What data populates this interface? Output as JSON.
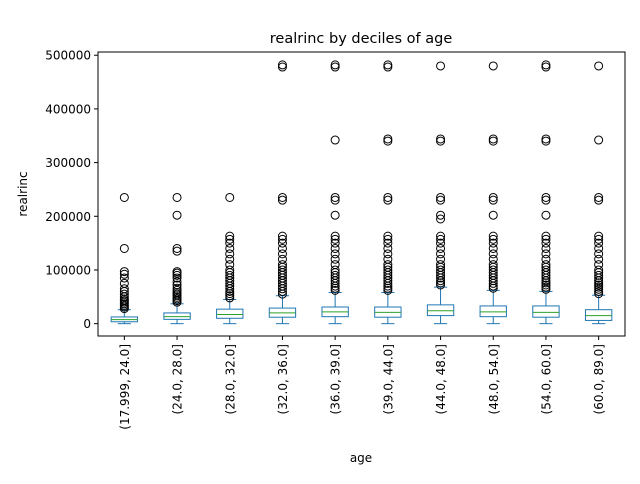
{
  "chart_data": {
    "type": "box",
    "title": "realrinc by deciles of age",
    "xlabel": "age",
    "ylabel": "realrinc",
    "ylim": [
      -23000,
      506000
    ],
    "yticks": [
      0,
      100000,
      200000,
      300000,
      400000,
      500000
    ],
    "ytick_labels": [
      "0",
      "100000",
      "200000",
      "300000",
      "400000",
      "500000"
    ],
    "grid": false,
    "categories": [
      "(17.999, 24.0]",
      "(24.0, 28.0]",
      "(28.0, 32.0]",
      "(32.0, 36.0]",
      "(36.0, 39.0]",
      "(39.0, 44.0]",
      "(44.0, 48.0]",
      "(48.0, 54.0]",
      "(54.0, 60.0]",
      "(60.0, 89.0]"
    ],
    "colors": {
      "box": "#1f77b4",
      "median": "#2ca02c",
      "flier": "#000000",
      "axis": "#000000"
    },
    "boxes": [
      {
        "whislo": 0,
        "q1": 3500,
        "med": 7500,
        "q3": 12500,
        "whishi": 26000,
        "fliers": [
          28000,
          31000,
          34000,
          37000,
          40000,
          43000,
          46000,
          50000,
          55000,
          60000,
          65000,
          75000,
          85000,
          92000,
          97000,
          140000,
          235000
        ]
      },
      {
        "whislo": 0,
        "q1": 8000,
        "med": 13000,
        "q3": 20000,
        "whishi": 37000,
        "fliers": [
          40000,
          43000,
          46000,
          49000,
          52000,
          55000,
          58000,
          62000,
          66000,
          72000,
          78000,
          85000,
          90000,
          94000,
          97000,
          135000,
          140000,
          202000,
          235000
        ]
      },
      {
        "whislo": 0,
        "q1": 10000,
        "med": 17000,
        "q3": 27000,
        "whishi": 45000,
        "fliers": [
          48000,
          52000,
          56000,
          60000,
          65000,
          70000,
          75000,
          80000,
          85000,
          90000,
          95000,
          100000,
          110000,
          120000,
          130000,
          140000,
          150000,
          157000,
          163000,
          235000
        ]
      },
      {
        "whislo": 0,
        "q1": 12000,
        "med": 20000,
        "q3": 29000,
        "whishi": 52000,
        "fliers": [
          55000,
          60000,
          65000,
          70000,
          75000,
          80000,
          85000,
          90000,
          95000,
          100000,
          105000,
          110000,
          120000,
          130000,
          140000,
          150000,
          157000,
          163000,
          230000,
          235000,
          478000,
          482000
        ]
      },
      {
        "whislo": 0,
        "q1": 13000,
        "med": 22000,
        "q3": 31000,
        "whishi": 58000,
        "fliers": [
          62000,
          66000,
          70000,
          75000,
          80000,
          85000,
          90000,
          95000,
          100000,
          110000,
          120000,
          130000,
          140000,
          150000,
          157000,
          163000,
          202000,
          230000,
          235000,
          342000,
          478000,
          482000
        ]
      },
      {
        "whislo": 0,
        "q1": 12000,
        "med": 21000,
        "q3": 31000,
        "whishi": 58000,
        "fliers": [
          62000,
          66000,
          70000,
          75000,
          80000,
          85000,
          90000,
          95000,
          100000,
          105000,
          110000,
          120000,
          130000,
          140000,
          150000,
          157000,
          163000,
          230000,
          235000,
          340000,
          344000,
          478000,
          482000
        ]
      },
      {
        "whislo": 0,
        "q1": 15000,
        "med": 24000,
        "q3": 35000,
        "whishi": 68000,
        "fliers": [
          72000,
          76000,
          80000,
          85000,
          90000,
          95000,
          100000,
          105000,
          110000,
          120000,
          130000,
          140000,
          150000,
          157000,
          163000,
          195000,
          202000,
          230000,
          235000,
          340000,
          344000,
          480000
        ]
      },
      {
        "whislo": 0,
        "q1": 13000,
        "med": 22000,
        "q3": 33000,
        "whishi": 62000,
        "fliers": [
          66000,
          70000,
          75000,
          80000,
          85000,
          90000,
          95000,
          100000,
          105000,
          110000,
          120000,
          130000,
          140000,
          150000,
          157000,
          163000,
          202000,
          230000,
          235000,
          340000,
          344000,
          480000
        ]
      },
      {
        "whislo": 0,
        "q1": 12000,
        "med": 21000,
        "q3": 33000,
        "whishi": 60000,
        "fliers": [
          64000,
          68000,
          72000,
          76000,
          80000,
          85000,
          90000,
          95000,
          100000,
          105000,
          110000,
          120000,
          130000,
          140000,
          150000,
          157000,
          163000,
          202000,
          230000,
          235000,
          340000,
          344000,
          478000,
          482000
        ]
      },
      {
        "whislo": 0,
        "q1": 6000,
        "med": 15000,
        "q3": 26000,
        "whishi": 53000,
        "fliers": [
          56000,
          60000,
          64000,
          68000,
          72000,
          76000,
          80000,
          85000,
          90000,
          95000,
          100000,
          110000,
          120000,
          130000,
          140000,
          150000,
          157000,
          163000,
          230000,
          235000,
          342000,
          480000
        ]
      }
    ]
  }
}
